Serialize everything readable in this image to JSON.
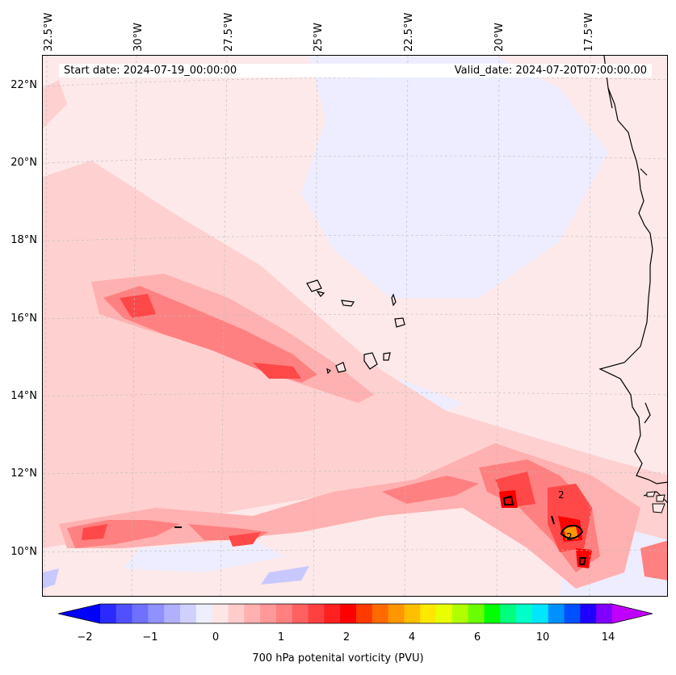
{
  "header": {
    "start_date": "Start date: 2024-07-19_00:00:00",
    "valid_date": "Valid_date: 2024-07-20T07:00:00.00"
  },
  "axes": {
    "lon_labels": [
      "32.5°W",
      "30°W",
      "27.5°W",
      "25°W",
      "22.5°W",
      "20°W",
      "17.5°W"
    ],
    "lat_labels": [
      "22°N",
      "20°N",
      "18°N",
      "16°N",
      "14°N",
      "12°N",
      "10°N"
    ]
  },
  "colorbar": {
    "label": "700 hPa potenital vorticity (PVU)",
    "tick_labels": [
      "−2",
      "−1",
      "0",
      "1",
      "2",
      "4",
      "6",
      "10",
      "14"
    ],
    "colors": [
      "#0000ff",
      "#2a2aff",
      "#5050ff",
      "#7070ff",
      "#9090ff",
      "#b0b0ff",
      "#d0d0ff",
      "#eeeeff",
      "#ffe6e6",
      "#ffcccc",
      "#ffb0b0",
      "#ff9898",
      "#ff8080",
      "#ff6060",
      "#ff4040",
      "#ff2020",
      "#ff0000",
      "#ff3a00",
      "#ff6a00",
      "#ff9500",
      "#ffbf00",
      "#ffe800",
      "#e8ff00",
      "#b0ff00",
      "#6aff00",
      "#00ff00",
      "#00ff80",
      "#00ffc8",
      "#00e6ff",
      "#0090ff",
      "#0050ff",
      "#2000ff",
      "#8000ff",
      "#c000ff"
    ]
  },
  "map": {
    "ocean_background": "#fde9ea",
    "field_colors": {
      "weak_neg": "#eeeeff",
      "neg": "#c8c8ff",
      "light": "#ffd0d0",
      "medium": "#ffb0b0",
      "strong": "#ff8080",
      "peak": "#ff4848",
      "extreme": "#ff0000",
      "orange": "#ff9500"
    },
    "contour_labels": [
      "2",
      "2"
    ]
  }
}
